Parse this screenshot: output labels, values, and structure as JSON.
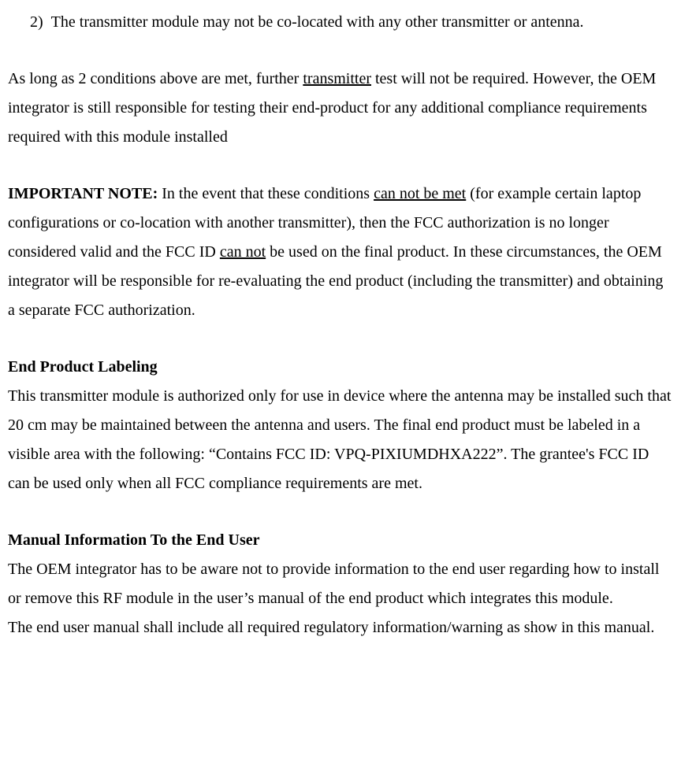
{
  "list": {
    "item2": {
      "number": "2)",
      "text": "The transmitter module may not be co-located with any other transmitter or antenna."
    }
  },
  "para1": {
    "pre": "As long as 2 conditions above are met, further ",
    "underlined": "transmitter",
    "post": " test will not be required. However, the OEM integrator is still responsible for testing their end-product for any additional compliance requirements required with this module installed"
  },
  "important": {
    "label": "IMPORTANT NOTE:",
    "seg1": " In the event that these conditions ",
    "u1": "can not be met",
    "seg2": " (for example certain laptop configurations or co-location with another transmitter), then the FCC authorization is no longer considered valid and the FCC ID ",
    "u2": "can not",
    "seg3": " be used on the final product. In these circumstances, the OEM integrator will be responsible for re-evaluating the end product (including the transmitter) and obtaining a separate FCC authorization."
  },
  "labeling": {
    "heading": "End Product Labeling",
    "body": "This transmitter module is authorized only for use in device where the antenna may be installed such that 20 cm may be maintained between the antenna and users. The final end product must be labeled in a visible area with the following: “Contains FCC ID: VPQ-PIXIUMDHXA222”. The grantee's FCC ID can be used only when all FCC compliance requirements are met."
  },
  "manual": {
    "heading": "Manual Information To the End User",
    "body1": "The OEM integrator has to be aware not to provide information to the end user regarding how to install or remove this RF module in the user’s manual of the end product which integrates this module.",
    "body2": "The end user manual shall include all required regulatory information/warning as show in this manual."
  }
}
